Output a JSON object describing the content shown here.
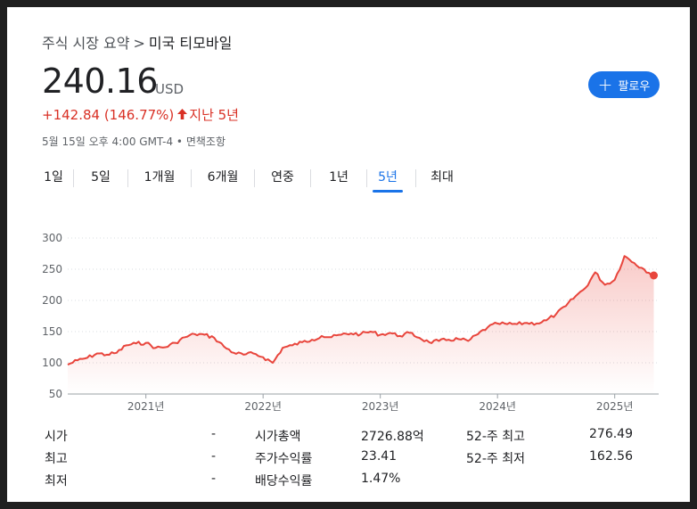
{
  "breadcrumb": {
    "parent": "주식 시장 요약",
    "separator": ">",
    "current": "미국 티모바일"
  },
  "quote": {
    "price": "240.16",
    "currency": "USD",
    "change": "+142.84 (146.77%)",
    "change_arrow": "🡑",
    "change_period": "지난 5년",
    "timestamp": "5월 15일 오후 4:00 GMT-4 • 면책조항"
  },
  "follow_button": {
    "icon": "plus-icon",
    "label": "팔로우"
  },
  "tabs": [
    {
      "label": "1일",
      "active": false
    },
    {
      "label": "5일",
      "active": false
    },
    {
      "label": "1개월",
      "active": false
    },
    {
      "label": "6개월",
      "active": false
    },
    {
      "label": "연중",
      "active": false
    },
    {
      "label": "1년",
      "active": false
    },
    {
      "label": "5년",
      "active": true
    },
    {
      "label": "최대",
      "active": false
    }
  ],
  "colors": {
    "accent": "#1a73e8",
    "negative_line": "#e8453c",
    "change_text": "#d93025"
  },
  "chart_data": {
    "type": "area",
    "x_ticks": [
      "2021년",
      "2022년",
      "2023년",
      "2024년",
      "2025년"
    ],
    "y_ticks": [
      "300",
      "250",
      "200",
      "150",
      "100",
      "50"
    ],
    "ylim": [
      50,
      300
    ],
    "grid": "horizontal dotted",
    "series": [
      {
        "x": [
          "2020-05",
          "2020-06",
          "2020-07",
          "2020-08",
          "2020-09",
          "2020-10",
          "2020-11",
          "2020-12",
          "2021-01",
          "2021-02",
          "2021-03",
          "2021-04",
          "2021-05",
          "2021-06",
          "2021-07",
          "2021-08",
          "2021-09",
          "2021-10",
          "2021-11",
          "2021-12",
          "2022-01",
          "2022-02",
          "2022-03",
          "2022-04",
          "2022-05",
          "2022-06",
          "2022-07",
          "2022-08",
          "2022-09",
          "2022-10",
          "2022-11",
          "2022-12",
          "2023-01",
          "2023-02",
          "2023-03",
          "2023-04",
          "2023-05",
          "2023-06",
          "2023-07",
          "2023-08",
          "2023-09",
          "2023-10",
          "2023-11",
          "2023-12",
          "2024-01",
          "2024-02",
          "2024-03",
          "2024-04",
          "2024-05",
          "2024-06",
          "2024-07",
          "2024-08",
          "2024-09",
          "2024-10",
          "2024-11",
          "2024-12",
          "2025-01",
          "2025-02",
          "2025-03",
          "2025-04",
          "2025-05"
        ],
        "values": [
          97,
          104,
          108,
          115,
          113,
          116,
          128,
          131,
          132,
          124,
          125,
          132,
          141,
          146,
          145,
          140,
          126,
          116,
          113,
          115,
          109,
          100,
          124,
          128,
          133,
          137,
          143,
          141,
          145,
          147,
          146,
          150,
          145,
          148,
          143,
          148,
          140,
          133,
          135,
          137,
          138,
          135,
          146,
          157,
          163,
          162,
          162,
          164,
          163,
          168,
          178,
          191,
          207,
          220,
          245,
          225,
          233,
          271,
          260,
          250,
          240
        ]
      }
    ]
  },
  "stats": [
    {
      "label": "시가",
      "value": "-",
      "label2": "시가총액",
      "value2": "2726.88억",
      "label3": "52-주 최고",
      "value3": "276.49"
    },
    {
      "label": "최고",
      "value": "-",
      "label2": "주가수익률",
      "value2": "23.41",
      "label3": "52-주 최저",
      "value3": "162.56"
    },
    {
      "label": "최저",
      "value": "-",
      "label2": "배당수익률",
      "value2": "1.47%",
      "label3": "",
      "value3": ""
    }
  ]
}
